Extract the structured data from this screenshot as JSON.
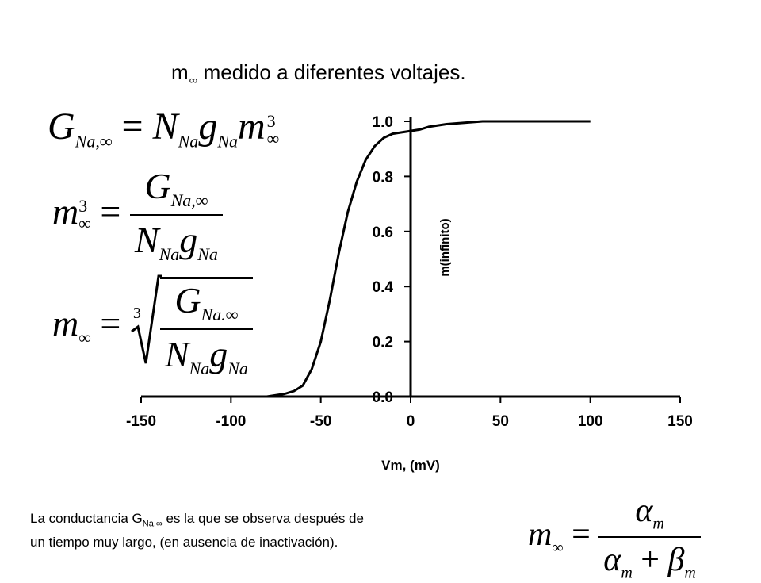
{
  "title": {
    "prefix": "m",
    "subscript": "∞",
    "text": " medido a diferentes voltajes."
  },
  "equations": {
    "eq1": {
      "lhs": "G",
      "lhs_sub": "Na,∞",
      "equals": "=",
      "rhs_N": "N",
      "rhs_N_sub": "Na",
      "rhs_g": "g",
      "rhs_g_sub": "Na",
      "rhs_m": "m",
      "rhs_m_sub": "∞",
      "rhs_m_sup": "3"
    },
    "eq2": {
      "lhs": "m",
      "lhs_sub": "∞",
      "lhs_sup": "3",
      "equals": "=",
      "num": "G",
      "num_sub": "Na,∞",
      "den_N": "N",
      "den_N_sub": "Na",
      "den_g": "g",
      "den_g_sub": "Na"
    },
    "eq3": {
      "lhs": "m",
      "lhs_sub": "∞",
      "equals": "=",
      "root_index": "3",
      "num": "G",
      "num_sub": "Na.∞",
      "den_N": "N",
      "den_N_sub": "Na",
      "den_g": "g",
      "den_g_sub": "Na"
    },
    "eq4": {
      "lhs": "m",
      "lhs_sub": "∞",
      "equals": "=",
      "num": "α",
      "num_sub": "m",
      "den_a": "α",
      "den_a_sub": "m",
      "plus": "+",
      "den_b": "β",
      "den_b_sub": "m"
    }
  },
  "note": {
    "line1_pre": "La conductancia G",
    "line1_sub": "Na,∞",
    "line1_post": " es la que se observa después de",
    "line2": "un tiempo muy largo, (en ausencia de inactivación)."
  },
  "chart_data": {
    "type": "line",
    "title": "",
    "xlabel": "Vm, (mV)",
    "ylabel": "m(infinito)",
    "xlim": [
      -150,
      150
    ],
    "ylim": [
      0,
      1.0
    ],
    "xticks": [
      -150,
      -100,
      -50,
      0,
      50,
      100,
      150
    ],
    "xtick_labels": [
      "-150",
      "-100",
      "-50",
      "0",
      "50",
      "100",
      "150"
    ],
    "yticks": [
      0,
      0.2,
      0.4,
      0.6,
      0.8,
      1.0
    ],
    "ytick_labels": [
      "0.0",
      "0.2",
      "0.4",
      "0.6",
      "0.8",
      "1.0"
    ],
    "grid": false,
    "y_axis_at_x": 0,
    "series": [
      {
        "values_x": [
          -80,
          -70,
          -65,
          -60,
          -55,
          -50,
          -45,
          -40,
          -35,
          -30,
          -25,
          -20,
          -15,
          -10,
          -5,
          0,
          5,
          10,
          20,
          30,
          40,
          50,
          60,
          80,
          100
        ],
        "values_y": [
          0.0,
          0.01,
          0.02,
          0.04,
          0.1,
          0.2,
          0.35,
          0.52,
          0.67,
          0.78,
          0.86,
          0.91,
          0.94,
          0.955,
          0.96,
          0.965,
          0.97,
          0.98,
          0.99,
          0.995,
          1.0,
          1.0,
          1.0,
          1.0,
          1.0
        ]
      }
    ]
  }
}
